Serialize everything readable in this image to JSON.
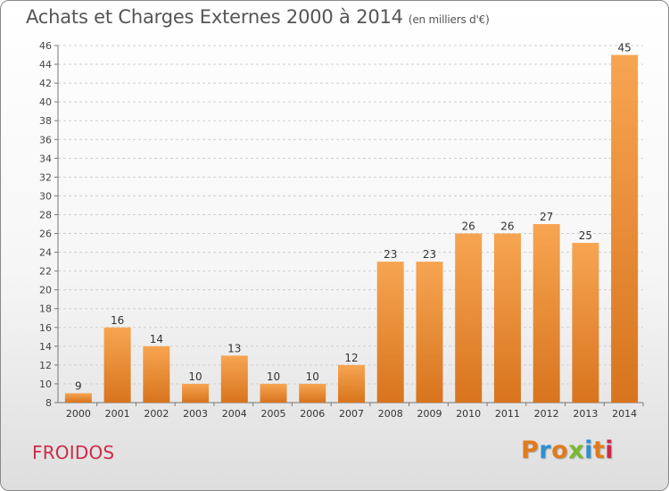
{
  "title": "Achats et Charges Externes 2000 à 2014",
  "subtitle": "(en milliers d'€)",
  "place": "FROIDOS",
  "logo_text": "Proxiti",
  "colors": {
    "bar_light": "#f7a552",
    "bar_dark": "#d8741d",
    "title": "#555555",
    "place": "#cc2a4a",
    "logo": [
      "#e07b1c",
      "#2f8fd0",
      "#e07b1c",
      "#7cb82f",
      "#2f8fd0",
      "#e07b1c",
      "#cc2a4a"
    ]
  },
  "chart_data": {
    "type": "bar",
    "categories": [
      "2000",
      "2001",
      "2002",
      "2003",
      "2004",
      "2005",
      "2006",
      "2007",
      "2008",
      "2009",
      "2010",
      "2011",
      "2012",
      "2013",
      "2014"
    ],
    "values": [
      9,
      16,
      14,
      10,
      13,
      10,
      10,
      12,
      23,
      23,
      26,
      26,
      27,
      25,
      45
    ],
    "ylim": [
      8,
      46
    ],
    "yticks": [
      8,
      10,
      12,
      14,
      16,
      18,
      20,
      22,
      24,
      26,
      28,
      30,
      32,
      34,
      36,
      38,
      40,
      42,
      44,
      46
    ],
    "grid": "horizontal-dashed",
    "legend": "none",
    "title": "Achats et Charges Externes 2000 à 2014",
    "xlabel": "",
    "ylabel": ""
  }
}
